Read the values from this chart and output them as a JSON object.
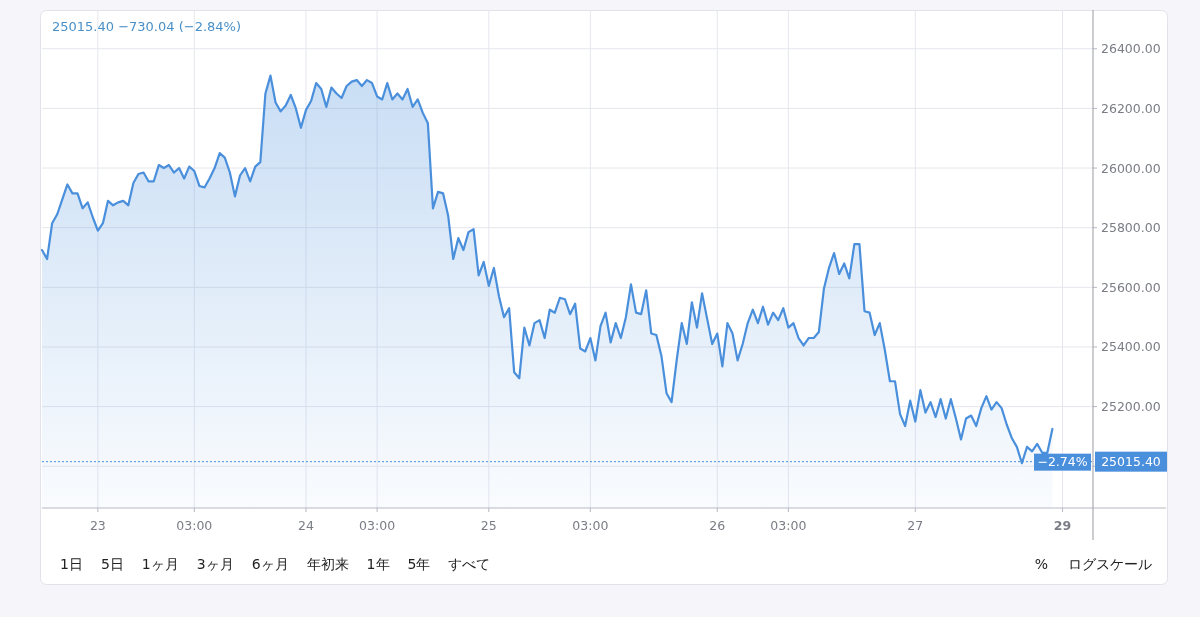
{
  "chart_data": {
    "type": "area",
    "title": "25015.40 −730.04 (−2.84%)",
    "categories": [
      null,
      null,
      null,
      null,
      null,
      null,
      null,
      null,
      null,
      null,
      null,
      "23",
      null,
      null,
      null,
      null,
      null,
      null,
      null,
      null,
      null,
      null,
      null,
      null,
      null,
      null,
      null,
      null,
      null,
      null,
      "03:00",
      null,
      null,
      null,
      null,
      null,
      null,
      null,
      null,
      null,
      null,
      null,
      null,
      null,
      null,
      null,
      null,
      null,
      null,
      null,
      null,
      null,
      "24",
      null,
      null,
      null,
      null,
      null,
      null,
      null,
      null,
      null,
      null,
      null,
      null,
      null,
      "03:00",
      null,
      null,
      null,
      null,
      null,
      null,
      null,
      null,
      null,
      null,
      null,
      null,
      null,
      null,
      null,
      null,
      null,
      null,
      null,
      null,
      null,
      "25",
      null,
      null,
      null,
      null,
      null,
      null,
      null,
      null,
      null,
      null,
      null,
      null,
      null,
      null,
      null,
      null,
      null,
      null,
      null,
      "03:00",
      null,
      null,
      null,
      null,
      null,
      null,
      null,
      null,
      null,
      null,
      null,
      null,
      null,
      null,
      null,
      null,
      null,
      null,
      null,
      null,
      null,
      null,
      null,
      null,
      "26",
      null,
      null,
      null,
      null,
      null,
      null,
      null,
      null,
      null,
      null,
      null,
      null,
      null,
      "03:00",
      null,
      null,
      null,
      null,
      null,
      null,
      null,
      null,
      null,
      null,
      null,
      null,
      null,
      null,
      null,
      null,
      null,
      null,
      null,
      null,
      null,
      null,
      null,
      null,
      "27",
      null,
      null,
      null,
      null,
      null,
      null,
      null,
      null,
      null,
      null,
      null,
      null,
      null,
      null,
      null,
      null,
      null,
      null,
      null,
      null,
      null,
      null,
      null,
      null,
      null,
      null,
      null,
      null,
      "29",
      null,
      null,
      null,
      null,
      null,
      null
    ],
    "series": [
      {
        "color": "#4a8fdc",
        "values": [
          25725,
          25695,
          25815,
          25845,
          25895,
          25945,
          25915,
          25915,
          25865,
          25885,
          25835,
          25790,
          25815,
          25890,
          25875,
          25885,
          25890,
          25875,
          25950,
          25980,
          25985,
          25955,
          25955,
          26010,
          26000,
          26010,
          25985,
          26000,
          25965,
          26005,
          25990,
          25940,
          25935,
          25965,
          26000,
          26050,
          26035,
          25985,
          25905,
          25975,
          26000,
          25955,
          26005,
          26020,
          26250,
          26310,
          26220,
          26190,
          26210,
          26245,
          26200,
          26135,
          26195,
          26225,
          26285,
          26265,
          26205,
          26270,
          26250,
          26235,
          26275,
          26290,
          26295,
          26275,
          26295,
          26285,
          26240,
          26230,
          26285,
          26230,
          26250,
          26230,
          26265,
          26205,
          26230,
          26185,
          26150,
          25865,
          25920,
          25915,
          25840,
          25695,
          25765,
          25725,
          25785,
          25795,
          25640,
          25685,
          25605,
          25665,
          25570,
          25500,
          25530,
          25315,
          25295,
          25465,
          25405,
          25480,
          25490,
          25430,
          25525,
          25515,
          25565,
          25560,
          25510,
          25545,
          25395,
          25385,
          25430,
          25355,
          25470,
          25515,
          25415,
          25480,
          25430,
          25500,
          25610,
          25515,
          25510,
          25590,
          25445,
          25440,
          25370,
          25245,
          25215,
          25355,
          25480,
          25410,
          25550,
          25465,
          25580,
          25495,
          25410,
          25445,
          25335,
          25480,
          25445,
          25355,
          25410,
          25480,
          25525,
          25480,
          25535,
          25475,
          25515,
          25490,
          25530,
          25465,
          25480,
          25430,
          25405,
          25430,
          25430,
          25450,
          25595,
          25665,
          25715,
          25645,
          25680,
          25630,
          25745,
          25745,
          25520,
          25515,
          25440,
          25480,
          25390,
          25285,
          25285,
          25175,
          25135,
          25220,
          25150,
          25255,
          25180,
          25215,
          25165,
          25225,
          25160,
          25225,
          25160,
          25090,
          25160,
          25170,
          25135,
          25195,
          25235,
          25190,
          25215,
          25195,
          25140,
          25095,
          25065,
          25010,
          25065,
          25050,
          25075,
          25045,
          25045,
          25125,
          null,
          null,
          null,
          null,
          null,
          null,
          null,
          null
        ]
      }
    ],
    "ylim": [
      24860,
      26530
    ],
    "yticks": [
      {
        "value": 25000,
        "label": null
      },
      {
        "value": 25015.4,
        "label": "25015.40"
      },
      {
        "value": 25200,
        "label": "25200.00"
      },
      {
        "value": 25400,
        "label": "25400.00"
      },
      {
        "value": 25600,
        "label": "25600.00"
      },
      {
        "value": 25800,
        "label": "25800.00"
      },
      {
        "value": 26000,
        "label": "26000.00"
      },
      {
        "value": 26200,
        "label": "26200.00"
      },
      {
        "value": 26400,
        "label": "26400.00"
      }
    ],
    "ref_lines": [
      {
        "axis": "y",
        "value": 25015.4,
        "label": "−2.74%",
        "color": "#4a8fdc",
        "line_style": "dotted"
      }
    ],
    "grid": true,
    "marker": "none",
    "line_style": "solid",
    "annotations": [
      "1日",
      "5日",
      "1ヶ月",
      "3ヶ月",
      "6ヶ月",
      "年初来",
      "1年",
      "5年",
      "すべて",
      "%",
      "ログスケール"
    ]
  }
}
